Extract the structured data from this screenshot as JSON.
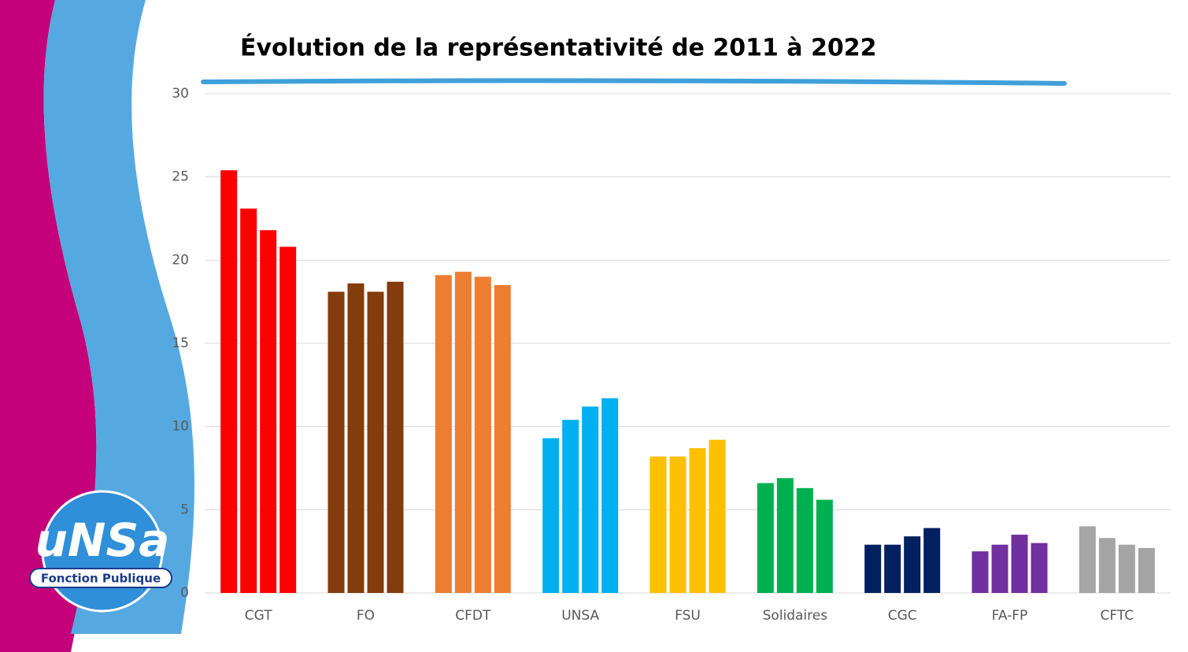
{
  "chart_data": {
    "type": "bar",
    "title": "Évolution de la représentativité de 2011 à 2022",
    "categories": [
      "CGT",
      "FO",
      "CFDT",
      "UNSA",
      "FSU",
      "Solidaires",
      "CGC",
      "FA-FP",
      "CFTC"
    ],
    "colors": [
      "#ff0000",
      "#843c0c",
      "#ed7d31",
      "#00b0f0",
      "#ffc000",
      "#00b050",
      "#002060",
      "#7030a0",
      "#a5a5a5"
    ],
    "values": [
      [
        25.4,
        23.1,
        21.8,
        20.8
      ],
      [
        18.1,
        18.6,
        18.1,
        18.7
      ],
      [
        19.1,
        19.3,
        19.0,
        18.5
      ],
      [
        9.3,
        10.4,
        11.2,
        11.7
      ],
      [
        8.2,
        8.2,
        8.7,
        9.2
      ],
      [
        6.6,
        6.9,
        6.3,
        5.6
      ],
      [
        2.9,
        2.9,
        3.4,
        3.9
      ],
      [
        2.5,
        2.9,
        3.5,
        3.0
      ],
      [
        4.0,
        3.3,
        2.9,
        2.7
      ]
    ],
    "ylim": [
      0,
      30
    ],
    "yticks": [
      0,
      5,
      10,
      15,
      20,
      25,
      30
    ],
    "grid": true
  },
  "logo": {
    "text": "uNSa",
    "subtitle": "Fonction Publique"
  }
}
